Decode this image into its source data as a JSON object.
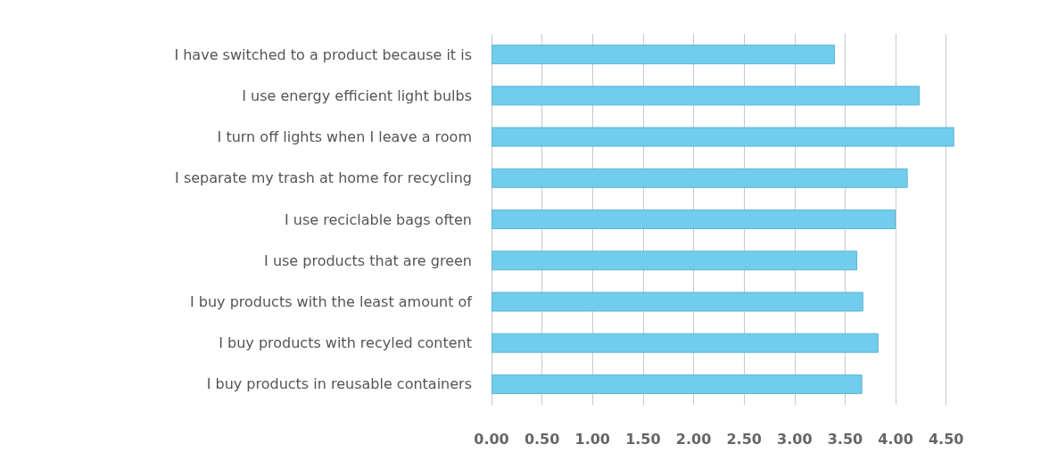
{
  "chart_data": {
    "type": "bar",
    "orientation": "horizontal",
    "categories": [
      "I have switched to a product because it is",
      "I use energy efficient light bulbs",
      "I turn off lights when I leave a room",
      "I separate my trash at home for recycling",
      "I use reciclable bags often",
      "I use products that are green",
      "I buy products with the least amount of",
      "I buy products with recyled content",
      "I buy products in reusable containers"
    ],
    "values": [
      3.4,
      4.24,
      4.58,
      4.12,
      4.0,
      3.62,
      3.68,
      3.83,
      3.67
    ],
    "color": "#72cdec",
    "xlim": [
      0,
      4.6
    ],
    "xticks": [
      {
        "value": 0,
        "label": "0.00"
      },
      {
        "value": 0.5,
        "label": "0.50"
      },
      {
        "value": 1,
        "label": "1.00"
      },
      {
        "value": 1.5,
        "label": "1.50"
      },
      {
        "value": 2,
        "label": "2.00"
      },
      {
        "value": 2.5,
        "label": "2.50"
      },
      {
        "value": 3,
        "label": "3.00"
      },
      {
        "value": 3.5,
        "label": "3.50"
      },
      {
        "value": 4,
        "label": "4.00"
      },
      {
        "value": 4.5,
        "label": "4.50"
      }
    ],
    "grid": "x"
  }
}
